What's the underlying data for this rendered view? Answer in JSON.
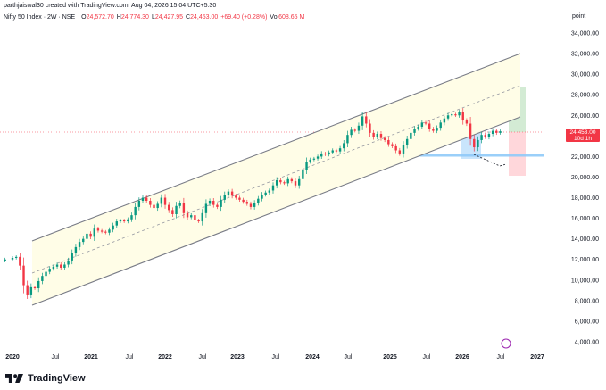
{
  "header": {
    "created": "parthjaiswal30 created with TradingView.com, Aug 04, 2026 15:04 UTC+5:30",
    "symbol": "Nifty 50 Index · 2W · NSE",
    "ohlc": [
      {
        "label": "O",
        "value": "24,572.70"
      },
      {
        "label": "H",
        "value": "24,774.30"
      },
      {
        "label": "L",
        "value": "24,427.95"
      },
      {
        "label": "C",
        "value": "24,453.00"
      },
      {
        "label": "",
        "value": "+69.40 (+0.28%)"
      },
      {
        "label": "Vol",
        "value": "608.65 M"
      }
    ]
  },
  "price_axis": {
    "title": "point",
    "ticks": [
      "34,000.00",
      "32,000.00",
      "30,000.00",
      "28,000.00",
      "26,000.00",
      "22,000.00",
      "20,000.00",
      "18,000.00",
      "16,000.00",
      "14,000.00",
      "12,000.00",
      "10,000.00",
      "8,000.00",
      "6,000.00",
      "4,000.00"
    ],
    "current_price": "24,453.00",
    "countdown": "10d 1h"
  },
  "time_axis": {
    "labels": [
      {
        "text": "2020",
        "year": true
      },
      {
        "text": "Jul",
        "year": false
      },
      {
        "text": "2021",
        "year": true
      },
      {
        "text": "Jul",
        "year": false
      },
      {
        "text": "2022",
        "year": true
      },
      {
        "text": "Jul",
        "year": false
      },
      {
        "text": "2023",
        "year": true
      },
      {
        "text": "Jul",
        "year": false
      },
      {
        "text": "2024",
        "year": true
      },
      {
        "text": "Jul",
        "year": false
      },
      {
        "text": "2025",
        "year": true
      },
      {
        "text": "Jul",
        "year": false
      },
      {
        "text": "2026",
        "year": true
      },
      {
        "text": "Jul",
        "year": false
      },
      {
        "text": "2027",
        "year": true
      }
    ]
  },
  "footer": {
    "brand": "TradingView"
  },
  "colors": {
    "up": "#089981",
    "down": "#f23645",
    "channel_fill": "#fffde7",
    "channel_line": "#787b86",
    "zone_blue": "#bbdefb",
    "zone_green": "#c8e6c9",
    "zone_red": "#ffcdd2"
  },
  "chart_data": {
    "type": "candlestick",
    "title": "Nifty 50 Index · 2W · NSE",
    "xlabel": "",
    "ylabel": "",
    "ylim": [
      2800,
      35800
    ],
    "xlim": [
      2020.0,
      2027.0
    ],
    "grid": false,
    "series": [
      {
        "values": [
          {
            "t": 2019.9,
            "c": 12000
          },
          {
            "t": 2020.0,
            "c": 12150
          },
          {
            "t": 2020.05,
            "c": 12250
          },
          {
            "t": 2020.1,
            "c": 11400
          },
          {
            "t": 2020.15,
            "c": 9500
          },
          {
            "t": 2020.2,
            "c": 8600
          },
          {
            "t": 2020.25,
            "c": 9300
          },
          {
            "t": 2020.3,
            "c": 9200
          },
          {
            "t": 2020.35,
            "c": 9900
          },
          {
            "t": 2020.4,
            "c": 10400
          },
          {
            "t": 2020.45,
            "c": 10800
          },
          {
            "t": 2020.5,
            "c": 11100
          },
          {
            "t": 2020.55,
            "c": 11300
          },
          {
            "t": 2020.6,
            "c": 11500
          },
          {
            "t": 2020.65,
            "c": 11200
          },
          {
            "t": 2020.7,
            "c": 11500
          },
          {
            "t": 2020.75,
            "c": 11900
          },
          {
            "t": 2020.8,
            "c": 12600
          },
          {
            "t": 2020.85,
            "c": 13200
          },
          {
            "t": 2020.9,
            "c": 13700
          },
          {
            "t": 2020.95,
            "c": 14000
          },
          {
            "t": 2021.0,
            "c": 14500
          },
          {
            "t": 2021.05,
            "c": 14200
          },
          {
            "t": 2021.1,
            "c": 15000
          },
          {
            "t": 2021.15,
            "c": 14800
          },
          {
            "t": 2021.2,
            "c": 14700
          },
          {
            "t": 2021.25,
            "c": 14600
          },
          {
            "t": 2021.3,
            "c": 14900
          },
          {
            "t": 2021.35,
            "c": 15300
          },
          {
            "t": 2021.4,
            "c": 15700
          },
          {
            "t": 2021.45,
            "c": 15800
          },
          {
            "t": 2021.5,
            "c": 15700
          },
          {
            "t": 2021.55,
            "c": 15900
          },
          {
            "t": 2021.6,
            "c": 16300
          },
          {
            "t": 2021.65,
            "c": 17100
          },
          {
            "t": 2021.7,
            "c": 17700
          },
          {
            "t": 2021.75,
            "c": 18000
          },
          {
            "t": 2021.8,
            "c": 17700
          },
          {
            "t": 2021.85,
            "c": 17300
          },
          {
            "t": 2021.9,
            "c": 17000
          },
          {
            "t": 2021.95,
            "c": 17400
          },
          {
            "t": 2022.0,
            "c": 18000
          },
          {
            "t": 2022.05,
            "c": 17300
          },
          {
            "t": 2022.1,
            "c": 16800
          },
          {
            "t": 2022.15,
            "c": 16400
          },
          {
            "t": 2022.2,
            "c": 17200
          },
          {
            "t": 2022.25,
            "c": 17500
          },
          {
            "t": 2022.3,
            "c": 16500
          },
          {
            "t": 2022.35,
            "c": 16100
          },
          {
            "t": 2022.4,
            "c": 16300
          },
          {
            "t": 2022.45,
            "c": 15800
          },
          {
            "t": 2022.5,
            "c": 15700
          },
          {
            "t": 2022.55,
            "c": 16500
          },
          {
            "t": 2022.6,
            "c": 17400
          },
          {
            "t": 2022.65,
            "c": 17700
          },
          {
            "t": 2022.7,
            "c": 17300
          },
          {
            "t": 2022.75,
            "c": 17100
          },
          {
            "t": 2022.8,
            "c": 17800
          },
          {
            "t": 2022.85,
            "c": 18300
          },
          {
            "t": 2022.9,
            "c": 18600
          },
          {
            "t": 2022.95,
            "c": 18200
          },
          {
            "t": 2023.0,
            "c": 18000
          },
          {
            "t": 2023.05,
            "c": 17800
          },
          {
            "t": 2023.1,
            "c": 17600
          },
          {
            "t": 2023.15,
            "c": 17400
          },
          {
            "t": 2023.2,
            "c": 17100
          },
          {
            "t": 2023.25,
            "c": 17500
          },
          {
            "t": 2023.3,
            "c": 17900
          },
          {
            "t": 2023.35,
            "c": 18300
          },
          {
            "t": 2023.4,
            "c": 18500
          },
          {
            "t": 2023.45,
            "c": 18700
          },
          {
            "t": 2023.5,
            "c": 19200
          },
          {
            "t": 2023.55,
            "c": 19700
          },
          {
            "t": 2023.6,
            "c": 19500
          },
          {
            "t": 2023.65,
            "c": 19400
          },
          {
            "t": 2023.7,
            "c": 19800
          },
          {
            "t": 2023.75,
            "c": 19600
          },
          {
            "t": 2023.8,
            "c": 19200
          },
          {
            "t": 2023.85,
            "c": 19800
          },
          {
            "t": 2023.9,
            "c": 20700
          },
          {
            "t": 2023.95,
            "c": 21500
          },
          {
            "t": 2024.0,
            "c": 21700
          },
          {
            "t": 2024.05,
            "c": 21800
          },
          {
            "t": 2024.1,
            "c": 22000
          },
          {
            "t": 2024.15,
            "c": 22300
          },
          {
            "t": 2024.2,
            "c": 22200
          },
          {
            "t": 2024.25,
            "c": 22400
          },
          {
            "t": 2024.3,
            "c": 22600
          },
          {
            "t": 2024.35,
            "c": 22500
          },
          {
            "t": 2024.4,
            "c": 22800
          },
          {
            "t": 2024.45,
            "c": 23300
          },
          {
            "t": 2024.5,
            "c": 24100
          },
          {
            "t": 2024.55,
            "c": 24600
          },
          {
            "t": 2024.6,
            "c": 24500
          },
          {
            "t": 2024.65,
            "c": 25000
          },
          {
            "t": 2024.7,
            "c": 25900
          },
          {
            "t": 2024.75,
            "c": 25200
          },
          {
            "t": 2024.8,
            "c": 24300
          },
          {
            "t": 2024.85,
            "c": 23900
          },
          {
            "t": 2024.9,
            "c": 24200
          },
          {
            "t": 2024.95,
            "c": 23800
          },
          {
            "t": 2025.0,
            "c": 23600
          },
          {
            "t": 2025.05,
            "c": 23200
          },
          {
            "t": 2025.1,
            "c": 23000
          },
          {
            "t": 2025.15,
            "c": 22600
          },
          {
            "t": 2025.2,
            "c": 22300
          },
          {
            "t": 2025.25,
            "c": 23100
          },
          {
            "t": 2025.3,
            "c": 23700
          },
          {
            "t": 2025.35,
            "c": 24300
          },
          {
            "t": 2025.4,
            "c": 24700
          },
          {
            "t": 2025.45,
            "c": 24900
          },
          {
            "t": 2025.5,
            "c": 25300
          },
          {
            "t": 2025.55,
            "c": 25200
          },
          {
            "t": 2025.6,
            "c": 24700
          },
          {
            "t": 2025.65,
            "c": 24500
          },
          {
            "t": 2025.7,
            "c": 24800
          },
          {
            "t": 2025.75,
            "c": 25300
          },
          {
            "t": 2025.8,
            "c": 25700
          },
          {
            "t": 2025.85,
            "c": 26000
          },
          {
            "t": 2025.9,
            "c": 26100
          },
          {
            "t": 2025.95,
            "c": 26000
          },
          {
            "t": 2026.0,
            "c": 26300
          },
          {
            "t": 2026.05,
            "c": 25500
          },
          {
            "t": 2026.1,
            "c": 25200
          },
          {
            "t": 2026.15,
            "c": 23700
          },
          {
            "t": 2026.2,
            "c": 22900
          },
          {
            "t": 2026.25,
            "c": 23600
          },
          {
            "t": 2026.3,
            "c": 24100
          },
          {
            "t": 2026.35,
            "c": 23900
          },
          {
            "t": 2026.4,
            "c": 24200
          },
          {
            "t": 2026.45,
            "c": 24500
          },
          {
            "t": 2026.5,
            "c": 24300
          },
          {
            "t": 2026.55,
            "c": 24453
          }
        ]
      }
    ]
  }
}
